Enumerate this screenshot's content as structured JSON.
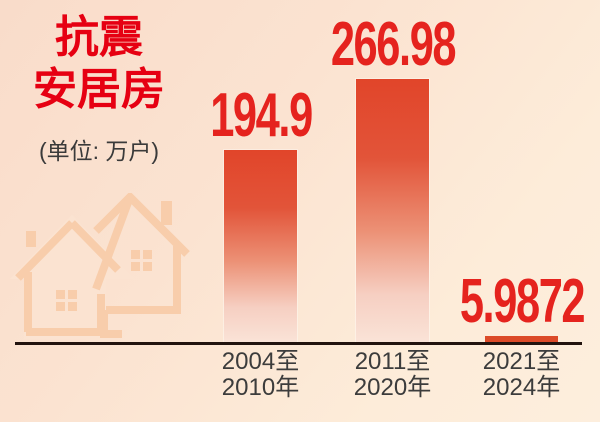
{
  "page": {
    "bg_top_color": "#f9dcca",
    "bg_bottom_color": "#fdeedd"
  },
  "header": {
    "title_line1": "抗震",
    "title_line2": "安居房",
    "unit_label": "(单位: 万户)"
  },
  "chart_data": {
    "type": "bar",
    "title": "抗震安居房",
    "unit": "万户",
    "unit_label": "(单位: 万户)",
    "categories": [
      "2004至2010年",
      "2011至2020年",
      "2021至2024年"
    ],
    "category_line1": [
      "2004至",
      "2011至",
      "2021至"
    ],
    "category_line2": [
      "2010年",
      "2020年",
      "2024年"
    ],
    "values": [
      194.9,
      266.98,
      5.9872
    ],
    "value_labels": [
      "194.9",
      "266.98",
      "5.9872"
    ],
    "ylim": [
      0,
      280
    ],
    "grid": false,
    "legend_position": "none",
    "watermark_icon": "two-houses-icon",
    "colors": {
      "title_red": "#e60012",
      "value_red": "#e5231e",
      "bar_gradient_top": "#e1452a",
      "bar_gradient_bottom": "#fae3d7",
      "small_bar": "#dc4a28",
      "axis_line": "#22130e",
      "tick_text": "#3c3c3c",
      "watermark": "#f8cdab"
    }
  }
}
